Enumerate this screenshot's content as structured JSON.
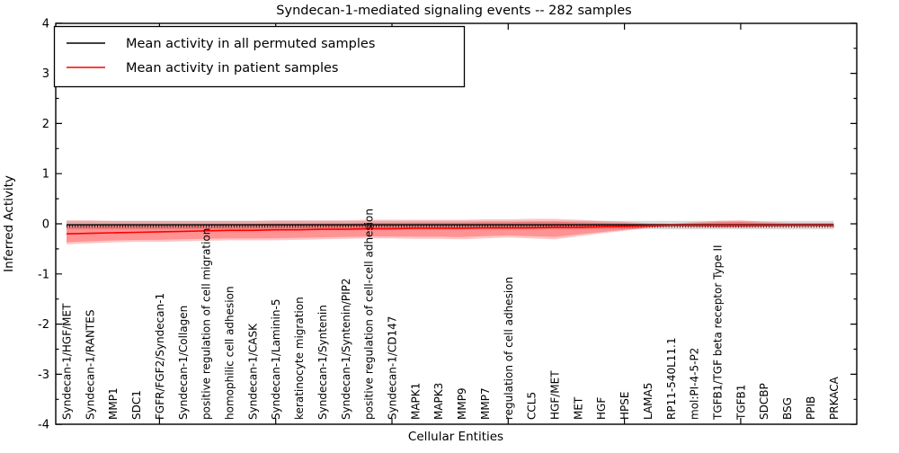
{
  "chart_data": {
    "type": "line",
    "title": "Syndecan-1-mediated signaling events -- 282 samples",
    "xlabel": "Cellular Entities",
    "ylabel": "Inferred Activity",
    "ylim": [
      -4,
      4
    ],
    "ytick_labels": [
      "4",
      "3",
      "2",
      "1",
      "0",
      "-1",
      "-2",
      "-3",
      "-4"
    ],
    "ytick_values": [
      4,
      3,
      2,
      1,
      0,
      -1,
      -2,
      -3,
      -4
    ],
    "yminor_step": 0.5,
    "xtick_positions": [
      5,
      10,
      15,
      20,
      25,
      30
    ],
    "grid": false,
    "legend_position": "upper left",
    "categories": [
      "Syndecan-1/HGF/MET",
      "Syndecan-1/RANTES",
      "MMP1",
      "SDC1",
      "FGFR/FGF2/Syndecan-1",
      "Syndecan-1/Collagen",
      "positive regulation of cell migration",
      "homophilic cell adhesion",
      "Syndecan-1/CASK",
      "Syndecan-1/Laminin-5",
      "keratinocyte migration",
      "Syndecan-1/Syntenin",
      "Syndecan-1/Syntenin/PIP2",
      "positive regulation of cell-cell adhesion",
      "Syndecan-1/CD147",
      "MAPK1",
      "MAPK3",
      "MMP9",
      "MMP7",
      "regulation of cell adhesion",
      "CCL5",
      "HGF/MET",
      "MET",
      "HGF",
      "HPSE",
      "LAMA5",
      "RP11-540L11.1",
      "mol:PI-4-5-P2",
      "TGFB1/TGF beta receptor Type II",
      "TGFB1",
      "SDCBP",
      "BSG",
      "PPIB",
      "PRKACA"
    ],
    "series": [
      {
        "name": "Mean activity in all permuted samples",
        "color": "#000000",
        "values": [
          -0.02,
          -0.02,
          -0.02,
          -0.02,
          -0.02,
          -0.02,
          -0.02,
          -0.02,
          -0.02,
          -0.02,
          -0.02,
          -0.02,
          -0.02,
          -0.02,
          -0.02,
          -0.02,
          -0.02,
          -0.02,
          -0.02,
          -0.02,
          -0.02,
          -0.02,
          -0.02,
          -0.02,
          -0.02,
          -0.02,
          -0.02,
          -0.02,
          -0.02,
          -0.02,
          -0.02,
          -0.02,
          -0.02,
          -0.02
        ],
        "band_upper": [
          0.06,
          0.06,
          0.06,
          0.06,
          0.06,
          0.06,
          0.06,
          0.06,
          0.06,
          0.06,
          0.06,
          0.06,
          0.06,
          0.06,
          0.06,
          0.06,
          0.06,
          0.06,
          0.06,
          0.06,
          0.06,
          0.06,
          0.06,
          0.06,
          0.06,
          0.06,
          0.06,
          0.06,
          0.06,
          0.06,
          0.06,
          0.06,
          0.06,
          0.06
        ],
        "band_lower": [
          -0.11,
          -0.11,
          -0.11,
          -0.11,
          -0.11,
          -0.11,
          -0.11,
          -0.11,
          -0.11,
          -0.11,
          -0.11,
          -0.11,
          -0.11,
          -0.11,
          -0.11,
          -0.11,
          -0.11,
          -0.11,
          -0.11,
          -0.11,
          -0.11,
          -0.11,
          -0.11,
          -0.11,
          -0.11,
          -0.11,
          -0.11,
          -0.11,
          -0.11,
          -0.11,
          -0.11,
          -0.11,
          -0.11,
          -0.11
        ],
        "band_color": "#888888"
      },
      {
        "name": "Mean activity in patient samples",
        "color": "#ff0000",
        "values": [
          -0.2,
          -0.19,
          -0.18,
          -0.17,
          -0.16,
          -0.15,
          -0.14,
          -0.13,
          -0.13,
          -0.12,
          -0.12,
          -0.11,
          -0.11,
          -0.1,
          -0.1,
          -0.09,
          -0.09,
          -0.09,
          -0.08,
          -0.08,
          -0.08,
          -0.07,
          -0.07,
          -0.06,
          -0.05,
          -0.04,
          -0.03,
          -0.03,
          -0.03,
          -0.03,
          -0.03,
          -0.03,
          -0.03,
          -0.03
        ],
        "band_upper": [
          0.07,
          0.07,
          0.06,
          0.06,
          0.06,
          0.06,
          0.06,
          0.06,
          0.06,
          0.07,
          0.07,
          0.07,
          0.07,
          0.08,
          0.08,
          0.08,
          0.08,
          0.08,
          0.09,
          0.09,
          0.1,
          0.1,
          0.08,
          0.06,
          0.04,
          0.01,
          0.0,
          0.03,
          0.06,
          0.07,
          0.04,
          0.02,
          0.02,
          0.02
        ],
        "band_lower": [
          -0.41,
          -0.39,
          -0.37,
          -0.36,
          -0.36,
          -0.35,
          -0.34,
          -0.33,
          -0.33,
          -0.33,
          -0.32,
          -0.31,
          -0.3,
          -0.29,
          -0.29,
          -0.3,
          -0.3,
          -0.31,
          -0.29,
          -0.27,
          -0.29,
          -0.31,
          -0.25,
          -0.19,
          -0.14,
          -0.08,
          -0.05,
          -0.06,
          -0.07,
          -0.07,
          -0.06,
          -0.05,
          -0.05,
          -0.06
        ],
        "band_color": "#ff0000"
      }
    ]
  },
  "legend": {
    "items": [
      {
        "label": "Mean activity in all permuted samples",
        "color": "#000000"
      },
      {
        "label": "Mean activity in patient samples",
        "color": "#ff0000"
      }
    ]
  }
}
